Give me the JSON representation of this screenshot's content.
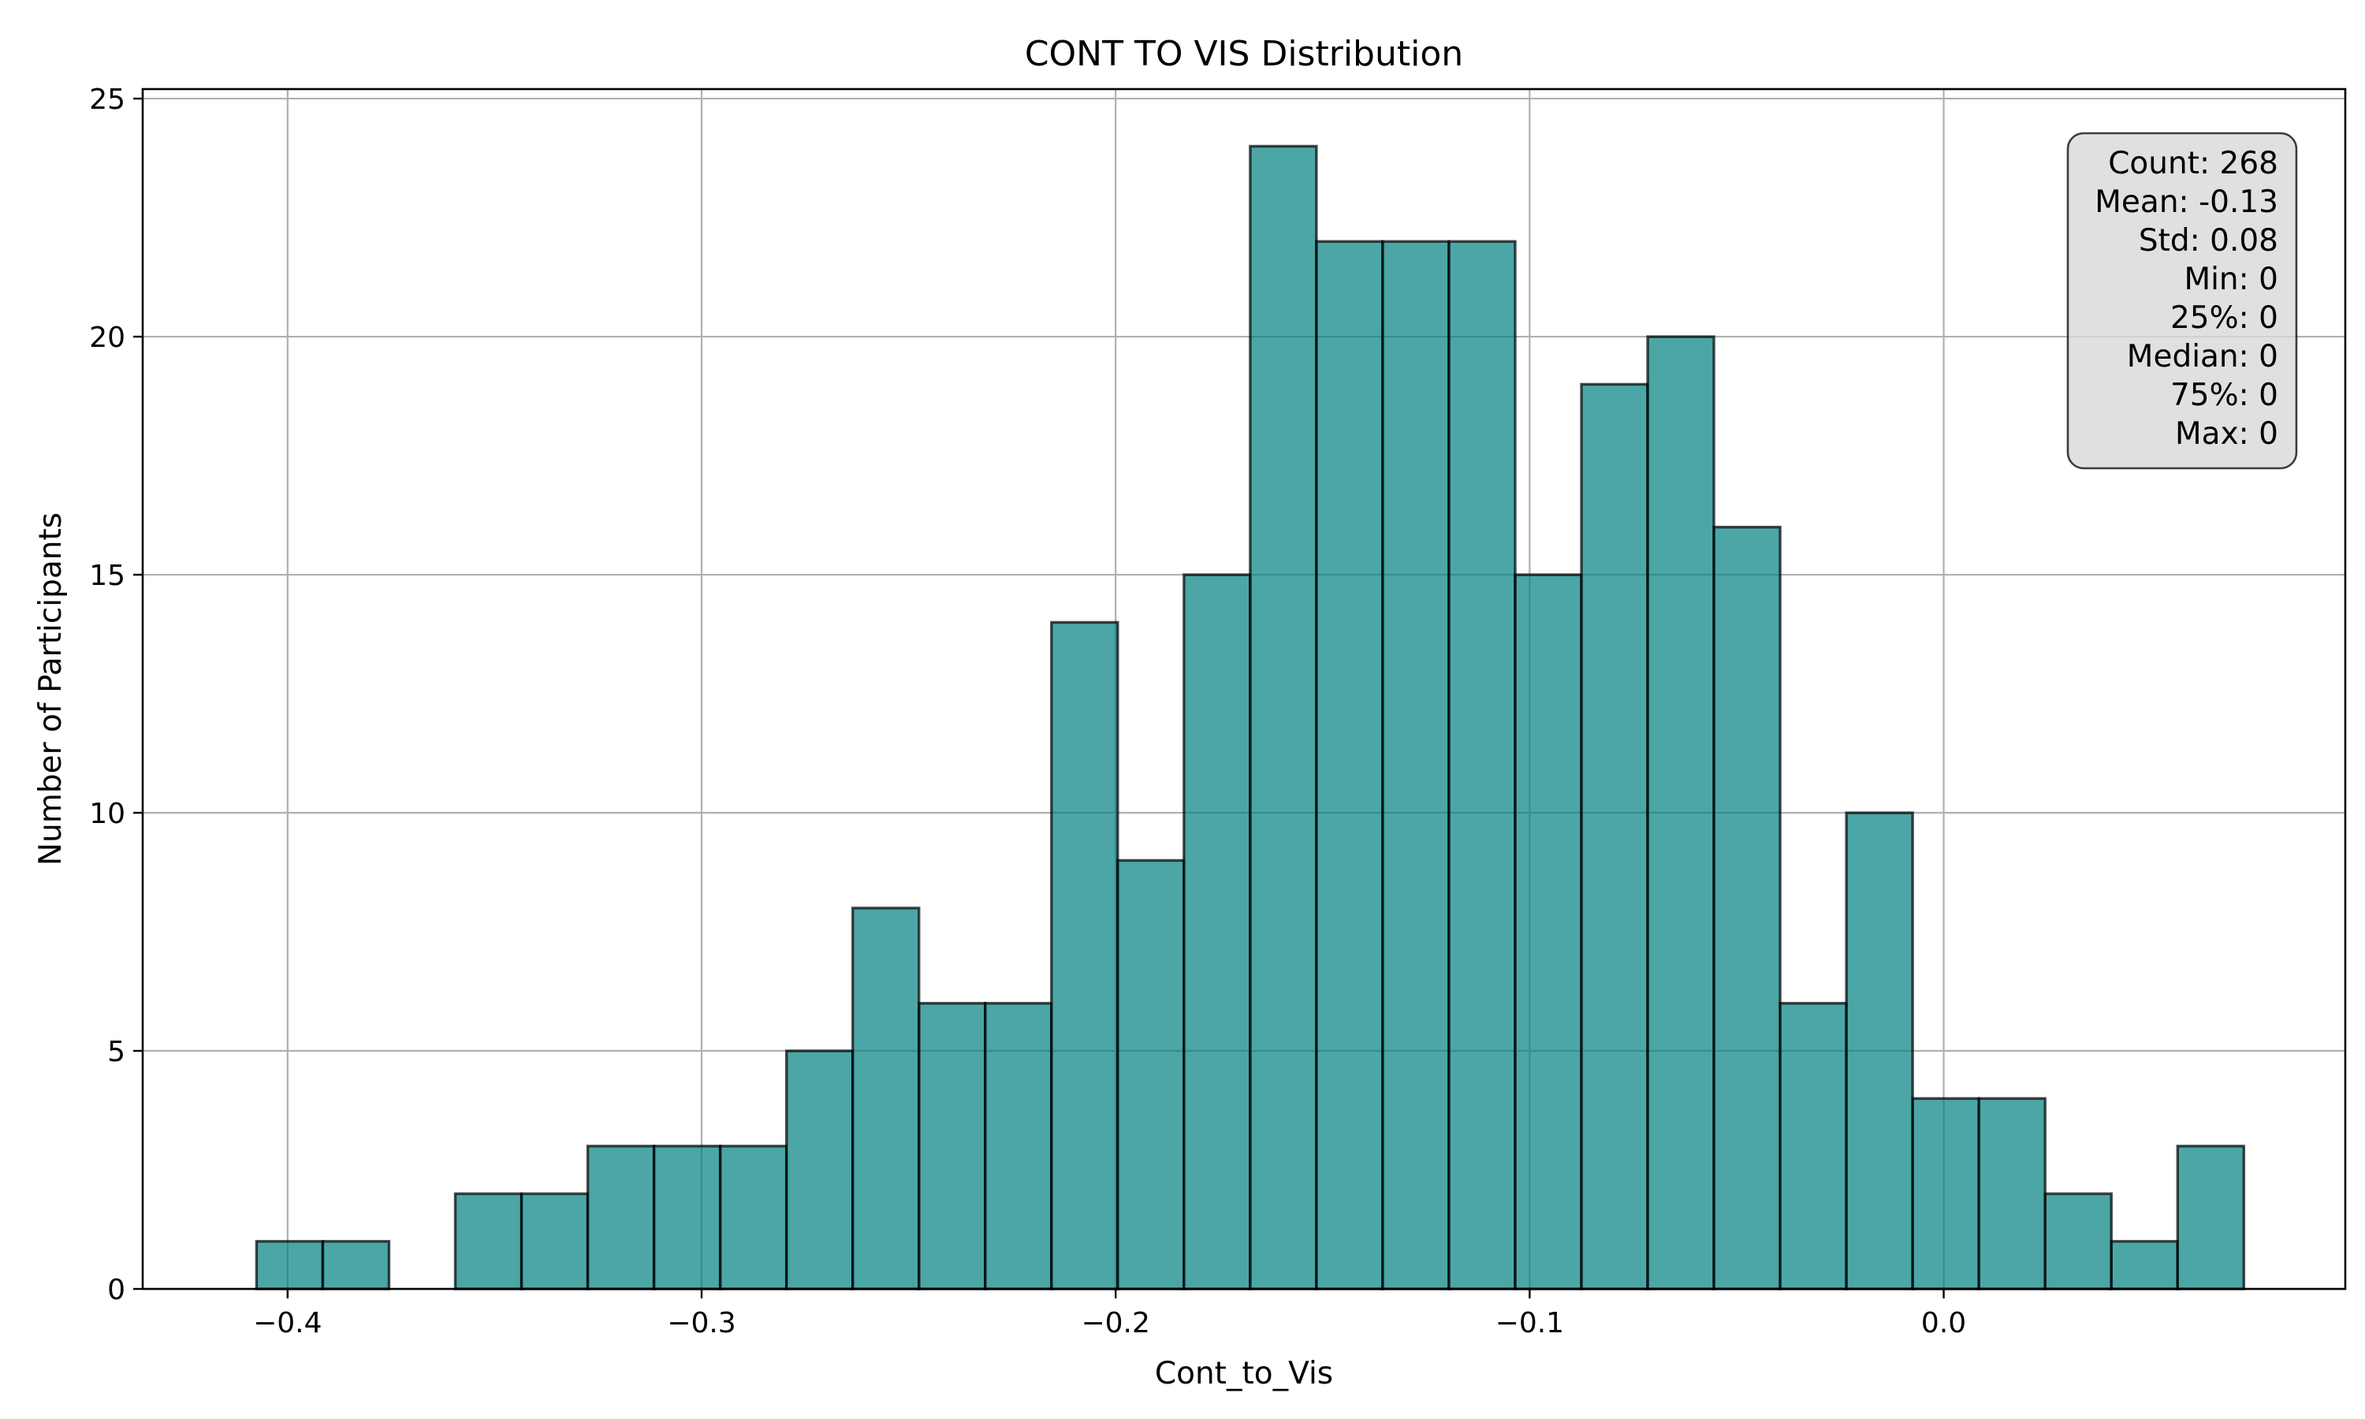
{
  "chart_data": {
    "type": "bar",
    "title": "CONT TO VIS Distribution",
    "xlabel": "Cont_to_Vis",
    "ylabel": "Number of Participants",
    "xlim": [
      -0.435,
      0.097
    ],
    "ylim": [
      0,
      25.2
    ],
    "grid": true,
    "x_ticks": [
      -0.4,
      -0.3,
      -0.2,
      -0.1,
      0.0
    ],
    "x_tick_labels": [
      "−0.4",
      "−0.3",
      "−0.2",
      "−0.1",
      "0.0"
    ],
    "y_ticks": [
      0,
      5,
      10,
      15,
      20,
      25
    ],
    "y_tick_labels": [
      "0",
      "5",
      "10",
      "15",
      "20",
      "25"
    ],
    "bar_color": "#008080",
    "bin_start": -0.4075,
    "bin_width": 0.016,
    "values": [
      1,
      1,
      0,
      2,
      2,
      3,
      3,
      3,
      5,
      8,
      6,
      6,
      14,
      9,
      15,
      24,
      22,
      22,
      22,
      15,
      19,
      20,
      16,
      6,
      10,
      4,
      4,
      2,
      1,
      3
    ],
    "stats_box": {
      "placement": "top-right",
      "lines": [
        "Count: 268",
        "Mean: -0.13",
        "Std: 0.08",
        "Min: 0",
        "25%: 0",
        "Median: 0",
        "75%: 0",
        "Max: 0"
      ]
    }
  }
}
